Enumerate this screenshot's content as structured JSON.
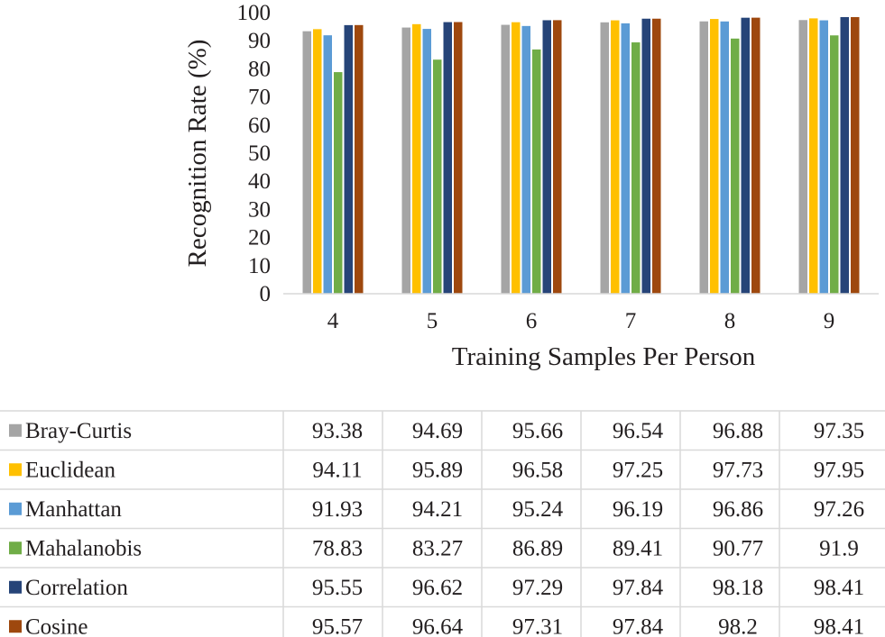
{
  "chart_data": {
    "type": "bar",
    "title": "",
    "xlabel": "Training Samples Per Person",
    "ylabel": "Recognition Rate (%)",
    "ylim": [
      0,
      100
    ],
    "yticks": [
      0,
      10,
      20,
      30,
      40,
      50,
      60,
      70,
      80,
      90,
      100
    ],
    "grid": false,
    "legend": "data table below chart",
    "categories": [
      "4",
      "5",
      "6",
      "7",
      "8",
      "9"
    ],
    "series": [
      {
        "name": "Bray-Curtis",
        "color": "#a5a5a5",
        "values": [
          93.38,
          94.69,
          95.66,
          96.54,
          96.88,
          97.35
        ],
        "labels": [
          "93.38",
          "94.69",
          "95.66",
          "96.54",
          "96.88",
          "97.35"
        ]
      },
      {
        "name": "Euclidean",
        "color": "#ffc000",
        "values": [
          94.11,
          95.89,
          96.58,
          97.25,
          97.73,
          97.95
        ],
        "labels": [
          "94.11",
          "95.89",
          "96.58",
          "97.25",
          "97.73",
          "97.95"
        ]
      },
      {
        "name": "Manhattan",
        "color": "#5b9bd5",
        "values": [
          91.93,
          94.21,
          95.24,
          96.19,
          96.86,
          97.26
        ],
        "labels": [
          "91.93",
          "94.21",
          "95.24",
          "96.19",
          "96.86",
          "97.26"
        ]
      },
      {
        "name": "Mahalanobis",
        "color": "#70ad47",
        "values": [
          78.83,
          83.27,
          86.89,
          89.41,
          90.77,
          91.9
        ],
        "labels": [
          "78.83",
          "83.27",
          "86.89",
          "89.41",
          "90.77",
          "91.9"
        ]
      },
      {
        "name": "Correlation",
        "color": "#264478",
        "values": [
          95.55,
          96.62,
          97.29,
          97.84,
          98.18,
          98.41
        ],
        "labels": [
          "95.55",
          "96.62",
          "97.29",
          "97.84",
          "98.18",
          "98.41"
        ]
      },
      {
        "name": "Cosine",
        "color": "#9e480e",
        "values": [
          95.57,
          96.64,
          97.31,
          97.84,
          98.2,
          98.41
        ],
        "labels": [
          "95.57",
          "96.64",
          "97.31",
          "97.84",
          "98.2",
          "98.41"
        ]
      }
    ]
  }
}
